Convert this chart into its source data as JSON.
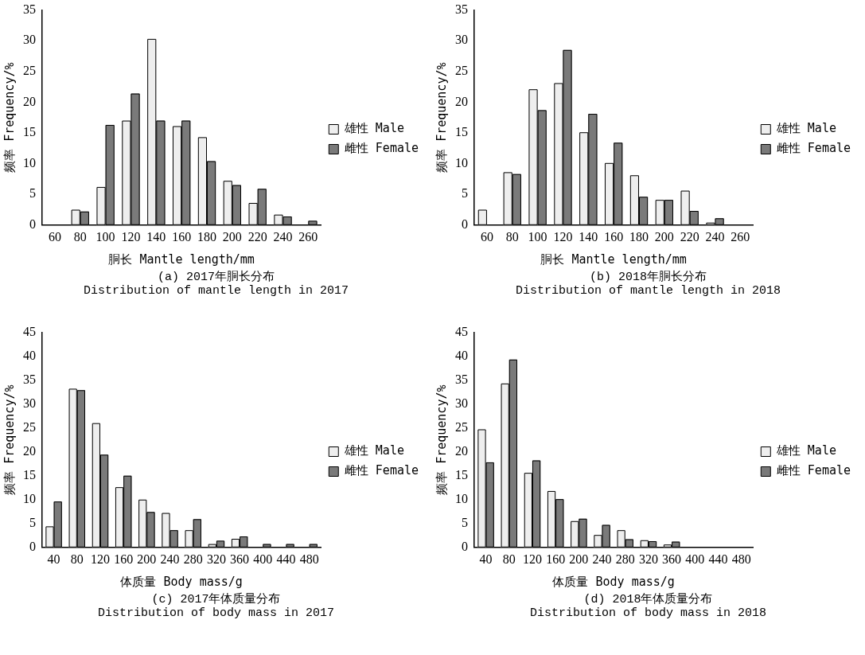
{
  "chart_data": [
    {
      "type": "bar",
      "title": "(a) 2017年胴长分布",
      "subtitle": "Distribution of mantle length in 2017",
      "xlabel": "胴长 Mantle length/mm",
      "ylabel": "频率 Frequency/%",
      "categories": [
        "60",
        "80",
        "100",
        "120",
        "140",
        "160",
        "180",
        "200",
        "220",
        "240",
        "260"
      ],
      "series": [
        {
          "name": "雄性 Male",
          "color": "#eeeeee",
          "values": [
            0,
            2.5,
            6.2,
            17,
            30.3,
            16.1,
            14.3,
            7.2,
            3.6,
            1.7,
            0
          ]
        },
        {
          "name": "雌性 Female",
          "color": "#7a7a7a",
          "values": [
            0,
            2.2,
            16.3,
            21.4,
            17,
            17,
            10.4,
            6.5,
            5.9,
            1.4,
            0.7
          ]
        }
      ],
      "ylim": [
        0,
        35
      ],
      "yticks": [
        0,
        5,
        10,
        15,
        20,
        25,
        30,
        35
      ],
      "grid": false,
      "legend": "right"
    },
    {
      "type": "bar",
      "title": "(b) 2018年胴长分布",
      "subtitle": "Distribution of mantle length in 2018",
      "xlabel": "胴长 Mantle length/mm",
      "ylabel": "频率 Frequency/%",
      "categories": [
        "60",
        "80",
        "100",
        "120",
        "140",
        "160",
        "180",
        "200",
        "220",
        "240",
        "260"
      ],
      "series": [
        {
          "name": "雄性 Male",
          "color": "#eeeeee",
          "values": [
            2.5,
            8.6,
            22.1,
            23.1,
            15.1,
            10.1,
            8.1,
            4.1,
            5.6,
            0.4,
            0
          ]
        },
        {
          "name": "雌性 Female",
          "color": "#7a7a7a",
          "values": [
            0,
            8.3,
            18.7,
            28.5,
            18.1,
            13.4,
            4.6,
            4.1,
            2.3,
            1.1,
            0
          ]
        }
      ],
      "ylim": [
        0,
        35
      ],
      "yticks": [
        0,
        5,
        10,
        15,
        20,
        25,
        30,
        35
      ],
      "grid": false,
      "legend": "right"
    },
    {
      "type": "bar",
      "title": "(c) 2017年体质量分布",
      "subtitle": "Distribution of body mass in 2017",
      "xlabel": "体质量 Body mass/g",
      "ylabel": "频率 Frequency/%",
      "categories": [
        "40",
        "80",
        "120",
        "160",
        "200",
        "240",
        "280",
        "320",
        "360",
        "400",
        "440",
        "480"
      ],
      "series": [
        {
          "name": "雄性 Male",
          "color": "#eeeeee",
          "values": [
            4.4,
            33.2,
            26,
            12.6,
            10,
            7.2,
            3.6,
            0.7,
            1.8,
            0,
            0,
            0
          ]
        },
        {
          "name": "雌性 Female",
          "color": "#7a7a7a",
          "values": [
            9.6,
            32.9,
            19.4,
            15,
            7.4,
            3.6,
            5.9,
            1.4,
            2.3,
            0.7,
            0.7,
            0.7
          ]
        }
      ],
      "ylim": [
        0,
        45
      ],
      "yticks": [
        0,
        5,
        10,
        15,
        20,
        25,
        30,
        35,
        40,
        45
      ],
      "grid": false,
      "legend": "right"
    },
    {
      "type": "bar",
      "title": "(d) 2018年体质量分布",
      "subtitle": "Distribution of body mass in 2018",
      "xlabel": "体质量 Body mass/g",
      "ylabel": "频率 Frequency/%",
      "categories": [
        "40",
        "80",
        "120",
        "160",
        "200",
        "240",
        "280",
        "320",
        "360",
        "400",
        "440",
        "480"
      ],
      "series": [
        {
          "name": "雄性 Male",
          "color": "#eeeeee",
          "values": [
            24.7,
            34.3,
            15.6,
            11.8,
            5.5,
            2.6,
            3.6,
            1.5,
            0.6,
            0,
            0,
            0
          ]
        },
        {
          "name": "雌性 Female",
          "color": "#7a7a7a",
          "values": [
            17.8,
            39.3,
            18.2,
            10.1,
            6,
            4.7,
            1.7,
            1.3,
            1.2,
            0,
            0,
            0
          ]
        }
      ],
      "ylim": [
        0,
        45
      ],
      "yticks": [
        0,
        5,
        10,
        15,
        20,
        25,
        30,
        35,
        40,
        45
      ],
      "grid": false,
      "legend": "right"
    }
  ]
}
